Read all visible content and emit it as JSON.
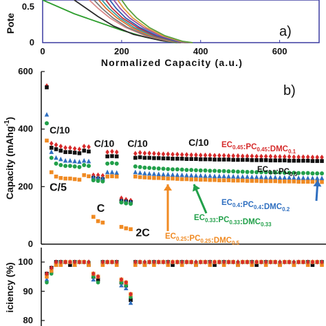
{
  "chart_data": [
    {
      "panel": "a",
      "type": "line",
      "panel_label": "a)",
      "xlabel": "Normalized Capacity (a.u.)",
      "ylabel_visible": "Pote",
      "x_ticks": [
        "0",
        "200",
        "400",
        "600"
      ],
      "y_ticks": [
        "0",
        "0.5"
      ],
      "xlim": [
        0,
        700
      ],
      "ylim": [
        0,
        0.62
      ],
      "series": [
        {
          "color": "#2e9e2e",
          "x": [
            0,
            40,
            80,
            140,
            200,
            260,
            310,
            340
          ],
          "y": [
            0.62,
            0.52,
            0.42,
            0.3,
            0.18,
            0.08,
            0.02,
            0.0
          ]
        },
        {
          "color": "#2a2a2a",
          "x": [
            80,
            110,
            140,
            180,
            230,
            300,
            350
          ],
          "y": [
            0.62,
            0.5,
            0.38,
            0.24,
            0.12,
            0.03,
            0.0
          ]
        },
        {
          "color": "#d98a8a",
          "x": [
            118,
            140,
            170,
            210,
            260,
            320,
            360
          ],
          "y": [
            0.62,
            0.5,
            0.36,
            0.22,
            0.1,
            0.02,
            0.0
          ]
        },
        {
          "color": "#7a7a7a",
          "x": [
            130,
            150,
            178,
            215,
            265,
            325,
            362
          ],
          "y": [
            0.62,
            0.5,
            0.36,
            0.22,
            0.1,
            0.02,
            0.0
          ]
        },
        {
          "color": "#e07030",
          "x": [
            142,
            160,
            188,
            225,
            272,
            330,
            365
          ],
          "y": [
            0.62,
            0.5,
            0.36,
            0.22,
            0.1,
            0.02,
            0.0
          ]
        },
        {
          "color": "#3aa0a0",
          "x": [
            150,
            168,
            195,
            232,
            278,
            334,
            368
          ],
          "y": [
            0.62,
            0.5,
            0.36,
            0.22,
            0.1,
            0.02,
            0.0
          ]
        },
        {
          "color": "#c03040",
          "x": [
            160,
            176,
            202,
            240,
            284,
            338,
            370
          ],
          "y": [
            0.62,
            0.5,
            0.36,
            0.22,
            0.1,
            0.02,
            0.0
          ]
        },
        {
          "color": "#3060b0",
          "x": [
            170,
            186,
            210,
            246,
            290,
            340,
            372
          ],
          "y": [
            0.62,
            0.5,
            0.36,
            0.22,
            0.1,
            0.02,
            0.0
          ]
        },
        {
          "color": "#9a50a0",
          "x": [
            180,
            196,
            220,
            255,
            298,
            346,
            375
          ],
          "y": [
            0.62,
            0.5,
            0.36,
            0.22,
            0.1,
            0.02,
            0.0
          ]
        },
        {
          "color": "#e59a40",
          "x": [
            190,
            205,
            228,
            262,
            304,
            350,
            378
          ],
          "y": [
            0.62,
            0.5,
            0.36,
            0.22,
            0.1,
            0.02,
            0.0
          ]
        },
        {
          "color": "#5aa040",
          "x": [
            200,
            215,
            238,
            270,
            310,
            354,
            380
          ],
          "y": [
            0.62,
            0.5,
            0.36,
            0.22,
            0.1,
            0.02,
            0.0
          ]
        }
      ]
    },
    {
      "panel": "b",
      "type": "scatter",
      "panel_label": "b)",
      "ylabel": "Capacity (mAhg",
      "ylabel_sup": "-1",
      "ylabel_end": ")",
      "y_ticks": [
        "0",
        "200",
        "400",
        "600"
      ],
      "ylim": [
        0,
        600
      ],
      "xlim": [
        0,
        100
      ],
      "rate_labels": [
        {
          "text": "C/10",
          "x": 2,
          "y": 385
        },
        {
          "text": "C/10",
          "x": 18,
          "y": 338
        },
        {
          "text": "C/5",
          "x": 2,
          "y": 185
        },
        {
          "text": "C/10",
          "x": 30,
          "y": 338
        },
        {
          "text": "C",
          "x": 19,
          "y": 112
        },
        {
          "text": "2C",
          "x": 33,
          "y": 28
        },
        {
          "text": "C/10",
          "x": 52,
          "y": 342
        }
      ],
      "series": [
        {
          "name_parts": [
            [
              "EC",
              "0.45"
            ],
            [
              ":PC",
              "0.45"
            ],
            [
              ":DMC",
              "0.1"
            ]
          ],
          "color": "#d62b2b",
          "marker": "diamond",
          "values": [
            550,
            350,
            345,
            340,
            335,
            335,
            332,
            330,
            340,
            338,
            240,
            240,
            238,
            320,
            322,
            320,
            160,
            155,
            152,
            315,
            318,
            316,
            316,
            315,
            314,
            313,
            313,
            312,
            312,
            311,
            311,
            310,
            310,
            309,
            309,
            309,
            308,
            308,
            308,
            307,
            307,
            307,
            306,
            306,
            306,
            305,
            305,
            305,
            305,
            304,
            304,
            304,
            304,
            303,
            303,
            303,
            303,
            302,
            302,
            302
          ]
        },
        {
          "name_parts": [
            [
              "EC",
              "0.5"
            ],
            [
              ":PC",
              "0.5"
            ]
          ],
          "color": "#111111",
          "marker": "square",
          "values": [
            545,
            335,
            330,
            325,
            320,
            320,
            318,
            316,
            325,
            322,
            230,
            228,
            226,
            305,
            306,
            305,
            150,
            148,
            146,
            300,
            302,
            300,
            300,
            299,
            299,
            298,
            298,
            297,
            297,
            297,
            296,
            296,
            296,
            295,
            295,
            295,
            294,
            294,
            294,
            294,
            293,
            293,
            293,
            293,
            292,
            292,
            292,
            292,
            291,
            291,
            291,
            291,
            290,
            290,
            290,
            290,
            290,
            289,
            289,
            289
          ]
        },
        {
          "name_parts": [
            [
              "EC",
              "0.4"
            ],
            [
              ":PC",
              "0.4"
            ],
            [
              ":DMC",
              "0.2"
            ]
          ],
          "color": "#2f6fc0",
          "marker": "triangle",
          "values": [
            450,
            320,
            300,
            295,
            290,
            290,
            288,
            286,
            290,
            288,
            232,
            230,
            228,
            250,
            250,
            248,
            150,
            148,
            146,
            250,
            248,
            246,
            245,
            244,
            243,
            242,
            242,
            241,
            240,
            240,
            239,
            239,
            238,
            238,
            237,
            237,
            236,
            236,
            236,
            235,
            235,
            234,
            234,
            234,
            233,
            233,
            233,
            232,
            232,
            232,
            231,
            231,
            231,
            230,
            230,
            230,
            229,
            229,
            229,
            229
          ]
        },
        {
          "name_parts": [
            [
              "EC",
              "0.33"
            ],
            [
              ":PC",
              "0.33"
            ],
            [
              ":DMC",
              "0.33"
            ]
          ],
          "color": "#22a04a",
          "marker": "circle",
          "values": [
            420,
            300,
            280,
            275,
            272,
            272,
            270,
            268,
            275,
            272,
            222,
            220,
            218,
            280,
            282,
            280,
            145,
            142,
            140,
            270,
            268,
            266,
            265,
            264,
            263,
            262,
            261,
            260,
            260,
            259,
            258,
            258,
            257,
            256,
            256,
            255,
            255,
            254,
            254,
            253,
            253,
            252,
            252,
            251,
            251,
            250,
            250,
            250,
            249,
            249,
            249,
            248,
            248,
            248,
            247,
            247,
            247,
            246,
            246,
            246
          ]
        },
        {
          "name_parts": [
            [
              "EC",
              "0.25"
            ],
            [
              ":PC",
              "0.25"
            ],
            [
              ":DMC",
              "0.5"
            ]
          ],
          "color": "#f08a22",
          "marker": "square",
          "values": [
            360,
            250,
            235,
            230,
            228,
            228,
            226,
            224,
            240,
            236,
            95,
            80,
            75,
            235,
            236,
            235,
            60,
            55,
            52,
            235,
            233,
            232,
            231,
            230,
            230,
            229,
            228,
            228,
            227,
            226,
            226,
            225,
            225,
            224,
            224,
            223,
            223,
            222,
            222,
            222,
            221,
            221,
            221,
            220,
            220,
            220,
            219,
            219,
            219,
            219,
            218,
            218,
            218,
            218,
            217,
            217,
            217,
            217,
            216,
            216
          ]
        }
      ]
    },
    {
      "panel": "c",
      "type": "scatter",
      "ylabel_visible": "iciency (%)",
      "y_ticks": [
        "80",
        "90",
        "100"
      ],
      "ylim": [
        78,
        104
      ],
      "xlim": [
        0,
        100
      ],
      "series": [
        {
          "color": "#111111",
          "marker": "square",
          "values": [
            96,
            98,
            100,
            100,
            100,
            99,
            100,
            100,
            100,
            99,
            95,
            94,
            100,
            100,
            100,
            100,
            93,
            92,
            87,
            100,
            100,
            99,
            100,
            100,
            100,
            100,
            100,
            99,
            100,
            100,
            100,
            100,
            99,
            100,
            100,
            100,
            99,
            100,
            100,
            100,
            100,
            99,
            100,
            100,
            100,
            99,
            100,
            100,
            100,
            100,
            99,
            100,
            100,
            99,
            100,
            100,
            100,
            99,
            100,
            100
          ]
        },
        {
          "color": "#2f6fc0",
          "marker": "triangle",
          "values": [
            94,
            97,
            99,
            100,
            100,
            100,
            99,
            100,
            100,
            100,
            94,
            95,
            100,
            100,
            100,
            100,
            92,
            91,
            86,
            100,
            100,
            100,
            100,
            100,
            100,
            100,
            100,
            100,
            100,
            100,
            100,
            100,
            100,
            100,
            100,
            100,
            100,
            100,
            100,
            100,
            100,
            100,
            100,
            100,
            100,
            100,
            100,
            100,
            100,
            100,
            100,
            100,
            100,
            100,
            100,
            100,
            100,
            100,
            100,
            100
          ]
        },
        {
          "color": "#22a04a",
          "marker": "circle",
          "values": [
            93,
            96,
            99,
            100,
            100,
            100,
            100,
            100,
            100,
            100,
            95,
            93,
            100,
            100,
            100,
            100,
            93,
            92,
            88,
            100,
            100,
            100,
            100,
            100,
            100,
            100,
            100,
            100,
            100,
            100,
            100,
            100,
            100,
            100,
            100,
            100,
            100,
            100,
            100,
            100,
            100,
            100,
            100,
            100,
            100,
            100,
            100,
            100,
            100,
            100,
            100,
            100,
            100,
            100,
            100,
            100,
            100,
            100,
            100,
            100
          ]
        },
        {
          "color": "#f08a22",
          "marker": "square",
          "values": [
            95,
            97,
            99,
            99,
            100,
            100,
            99,
            100,
            100,
            99,
            96,
            95,
            99,
            100,
            100,
            99,
            94,
            93,
            89,
            99,
            100,
            99,
            100,
            99,
            100,
            100,
            99,
            100,
            100,
            99,
            100,
            100,
            99,
            100,
            100,
            99,
            100,
            100,
            99,
            100,
            100,
            99,
            100,
            100,
            99,
            100,
            100,
            99,
            100,
            100,
            99,
            100,
            100,
            99,
            100,
            100,
            99,
            100,
            100,
            99
          ]
        },
        {
          "color": "#d62b2b",
          "marker": "diamond",
          "values": [
            96,
            98,
            100,
            100,
            100,
            100,
            100,
            100,
            100,
            100,
            96,
            95,
            100,
            100,
            100,
            100,
            94,
            93,
            89,
            100,
            100,
            100,
            100,
            100,
            100,
            100,
            100,
            100,
            100,
            100,
            100,
            100,
            100,
            100,
            100,
            100,
            100,
            100,
            100,
            100,
            100,
            100,
            100,
            100,
            100,
            100,
            100,
            100,
            100,
            100,
            100,
            100,
            100,
            100,
            100,
            100,
            100,
            100,
            100,
            100
          ]
        }
      ]
    }
  ]
}
